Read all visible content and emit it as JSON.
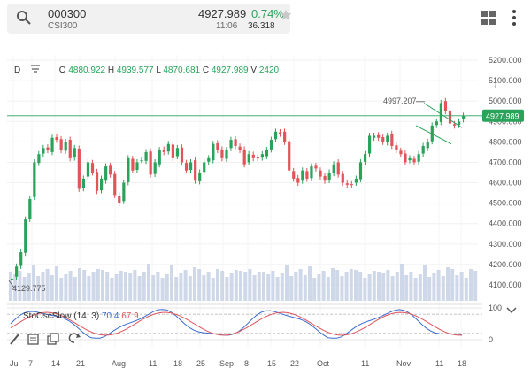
{
  "quote": {
    "symbol": "000300",
    "name": "CSI300",
    "price": "4927.989",
    "change_pct": "0.74%",
    "time": "11:06",
    "volume": "36.318"
  },
  "chart_header": {
    "interval": "D",
    "o_label": "O",
    "o_value": "4880.922",
    "h_label": "H",
    "h_value": "4939.577",
    "l_label": "L",
    "l_value": "4870.681",
    "c_label": "C",
    "c_value": "4927.989",
    "v_label": "V",
    "v_value": "2420"
  },
  "price_axis": [
    "5200.000",
    "5100.000",
    "5000.000",
    "4900.000",
    "4800.000",
    "4700.000",
    "4600.000",
    "4500.000",
    "4400.000",
    "4300.000",
    "4200.000",
    "4100.000"
  ],
  "current_price_tag": "4927.989",
  "high_marker": "4997.207",
  "low_marker": "4129.775",
  "oscillator": {
    "name": "StoOscSlow",
    "params": "(14, 3)",
    "k_value": "70.4",
    "d_value": "67.9",
    "axis_top": "100",
    "axis_bottom": "0"
  },
  "time_axis": [
    "Jul",
    "7",
    "14",
    "21",
    "Aug",
    "11",
    "18",
    "25",
    "Sep",
    "8",
    "15",
    "22",
    "Oct",
    "11",
    "Nov",
    "11",
    "18"
  ],
  "colors": {
    "up": "#2aa35a",
    "down": "#e0545a",
    "volume": "#cfd8e8",
    "k_line": "#3a6bd1",
    "d_line": "#e0545a"
  },
  "chart_data": {
    "type": "line",
    "title": "",
    "xlabel": "",
    "ylabel": "",
    "ylim": [
      4100,
      5200
    ],
    "x": [
      "Jul",
      "Aug",
      "Sep",
      "Oct",
      "Nov"
    ],
    "series": [
      {
        "values": [
          4130,
          4760,
          4820,
          4850,
          4930
        ]
      }
    ]
  }
}
